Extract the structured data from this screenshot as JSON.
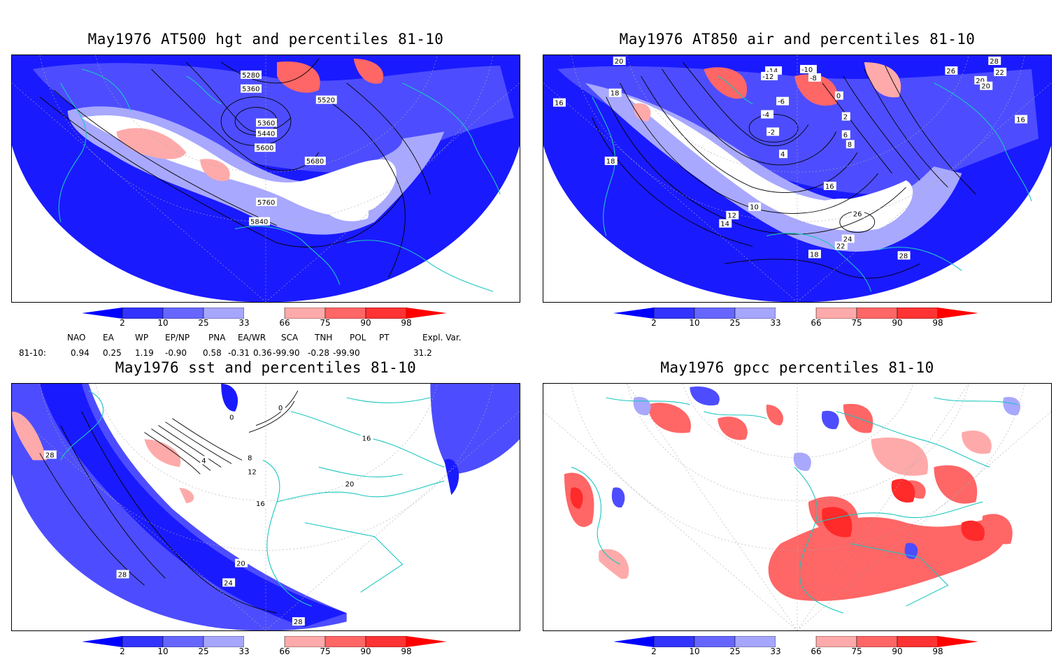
{
  "panels": {
    "p1": {
      "title": "May1976 AT500 hgt and percentiles 81-10",
      "contour_labels": [
        "5280",
        "5360",
        "5520",
        "5360",
        "5440",
        "5600",
        "5680",
        "5760",
        "5840"
      ]
    },
    "p2": {
      "title": "May1976 AT850 air and percentiles 81-10",
      "contour_labels": [
        "20",
        "18",
        "16",
        "-14",
        "-12",
        "-10",
        "-8",
        "-6",
        "0",
        "-4",
        "-2",
        "2",
        "6",
        "8",
        "4",
        "10",
        "12",
        "14",
        "16",
        "18",
        "22",
        "24",
        "26",
        "28",
        "20",
        "22",
        "26",
        "28",
        "20",
        "16",
        "18"
      ]
    },
    "p3": {
      "title": "May1976 sst and percentiles 81-10",
      "contour_labels": [
        "28",
        "0",
        "4",
        "8",
        "12",
        "16",
        "20",
        "24",
        "28",
        "20",
        "0",
        "16",
        "28"
      ]
    },
    "p4": {
      "title": "May1976 gpcc percentiles 81-10",
      "contour_labels": []
    }
  },
  "colorbar": {
    "labels": [
      "2",
      "10",
      "25",
      "33",
      "66",
      "75",
      "90",
      "98"
    ],
    "colors": [
      "#0000ff",
      "#3333ff",
      "#6666ff",
      "#a6a6ff",
      "#ffffff",
      "#ffaaaa",
      "#ff6666",
      "#ff3333",
      "#ff0000"
    ]
  },
  "indices": {
    "headers": [
      "NAO",
      "EA",
      "WP",
      "EP/NP",
      "PNA",
      "EA/WR",
      "SCA",
      "TNH",
      "POL",
      "PT",
      "Expl. Var."
    ],
    "row_label": "81-10:",
    "values": [
      "0.94",
      "0.25",
      "1.19",
      "-0.90",
      "0.58",
      "-0.31",
      "0.36",
      "-99.90",
      "-0.28",
      "-99.90",
      "31.2"
    ]
  },
  "map_colors": {
    "coast": "#1cc7c0",
    "deep_blue": "#1a1aff",
    "mid_blue": "#4d4dff",
    "light_blue": "#a8a8ff",
    "light_red": "#ffaaaa",
    "mid_red": "#ff6666",
    "deep_red": "#ff2a2a"
  }
}
